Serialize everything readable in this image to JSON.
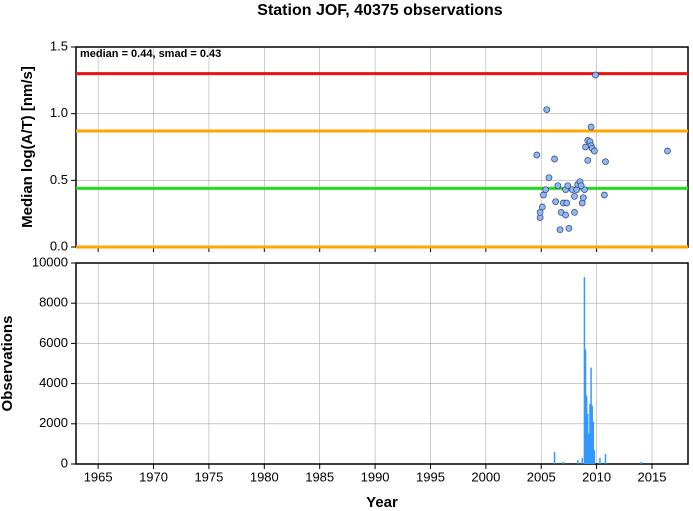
{
  "title": "Station JOF, 40375 observations",
  "chart_data": [
    {
      "type": "scatter",
      "ylabel": "Median log(A/T) [nm/s]",
      "annotation": "median = 0.44, smad = 0.43",
      "xlim": [
        1963,
        2018.25
      ],
      "xticks": [
        1965,
        1970,
        1975,
        1980,
        1985,
        1990,
        1995,
        2000,
        2005,
        2010,
        2015
      ],
      "ylim": [
        0,
        1.5
      ],
      "yticks": [
        {
          "value": 0,
          "label": "0.0"
        },
        0.5,
        {
          "value": 1,
          "label": "1.0"
        },
        {
          "value": 1.5,
          "label": "1.5"
        }
      ],
      "grid": true,
      "color": "#8fb8f0",
      "hlines": [
        {
          "value": 1.3,
          "color": "#ee1111"
        },
        {
          "value": 0.87,
          "color": "#ffa500"
        },
        {
          "value": 0.44,
          "color": "#22dd22"
        },
        {
          "value": 0,
          "color": "#ffa500"
        }
      ],
      "x": [
        2004.6,
        2005.5,
        2004.9,
        2004.9,
        2005.1,
        2005.2,
        2005.4,
        2005.7,
        2006.2,
        2006.3,
        2006.5,
        2006.7,
        2006.8,
        2007.0,
        2007.2,
        2007.3,
        2007.2,
        2007.4,
        2007.5,
        2007.8,
        2008.0,
        2008.2,
        2008.3,
        2008.5,
        2008.7,
        2008.8,
        2008.9,
        2008.6,
        2008.0,
        2009.0,
        2009.2,
        2009.4,
        2009.2,
        2009.5,
        2009.5,
        2009.6,
        2009.8,
        2009.9,
        2010.8,
        2010.7,
        2016.4
      ],
      "values": [
        0.69,
        1.03,
        0.22,
        0.26,
        0.3,
        0.39,
        0.43,
        0.52,
        0.66,
        0.34,
        0.46,
        0.13,
        0.26,
        0.33,
        0.43,
        0.33,
        0.24,
        0.46,
        0.14,
        0.43,
        0.38,
        0.43,
        0.47,
        0.49,
        0.33,
        0.37,
        0.43,
        0.46,
        0.26,
        0.75,
        0.8,
        0.79,
        0.65,
        0.9,
        0.76,
        0.74,
        0.72,
        1.29,
        0.64,
        0.39,
        0.72
      ]
    },
    {
      "type": "spikes",
      "ylabel": "Observations",
      "xlabel": "Year",
      "xlim": [
        1963,
        2018.25
      ],
      "xticks": [
        1965,
        1970,
        1975,
        1980,
        1985,
        1990,
        1995,
        2000,
        2005,
        2010,
        2015
      ],
      "ylim": [
        0,
        10000
      ],
      "yticks": [
        0,
        2000,
        4000,
        6000,
        8000,
        10000
      ],
      "grid": true,
      "color": "#3399ff",
      "x": [
        2006.2,
        2007.0,
        2008.3,
        2008.7,
        2008.9,
        2009.0,
        2009.1,
        2009.2,
        2009.3,
        2009.4,
        2009.5,
        2009.6,
        2009.7,
        2009.8,
        2010.3,
        2010.8,
        2014.0
      ],
      "values": [
        600,
        100,
        200,
        300,
        9300,
        5700,
        3400,
        2500,
        1500,
        3000,
        4800,
        2900,
        2100,
        700,
        300,
        500,
        100
      ]
    }
  ]
}
